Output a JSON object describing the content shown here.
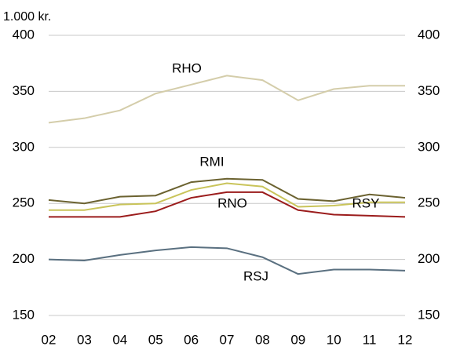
{
  "chart_data": {
    "type": "line",
    "unit_label": "1.000 kr.",
    "categories": [
      "02",
      "03",
      "04",
      "05",
      "06",
      "07",
      "08",
      "09",
      "10",
      "11",
      "12"
    ],
    "series": [
      {
        "name": "RHO",
        "color": "#d4cdaa",
        "values": [
          322,
          326,
          333,
          348,
          356,
          364,
          360,
          342,
          352,
          355,
          355
        ]
      },
      {
        "name": "RMI",
        "color": "#6b6230",
        "values": [
          253,
          250,
          256,
          257,
          269,
          272,
          271,
          254,
          252,
          258,
          255
        ]
      },
      {
        "name": "RSY",
        "color": "#c9c45a",
        "values": [
          244,
          244,
          249,
          250,
          262,
          268,
          265,
          247,
          248,
          251,
          251
        ]
      },
      {
        "name": "RNO",
        "color": "#9b1c1c",
        "values": [
          238,
          238,
          238,
          243,
          255,
          260,
          260,
          244,
          240,
          239,
          238
        ]
      },
      {
        "name": "RSJ",
        "color": "#5a7080",
        "values": [
          200,
          199,
          204,
          208,
          211,
          210,
          202,
          187,
          191,
          191,
          190
        ]
      }
    ],
    "ylim": [
      150,
      400
    ],
    "yticks": [
      150,
      200,
      250,
      300,
      350,
      400
    ],
    "grid": true
  }
}
